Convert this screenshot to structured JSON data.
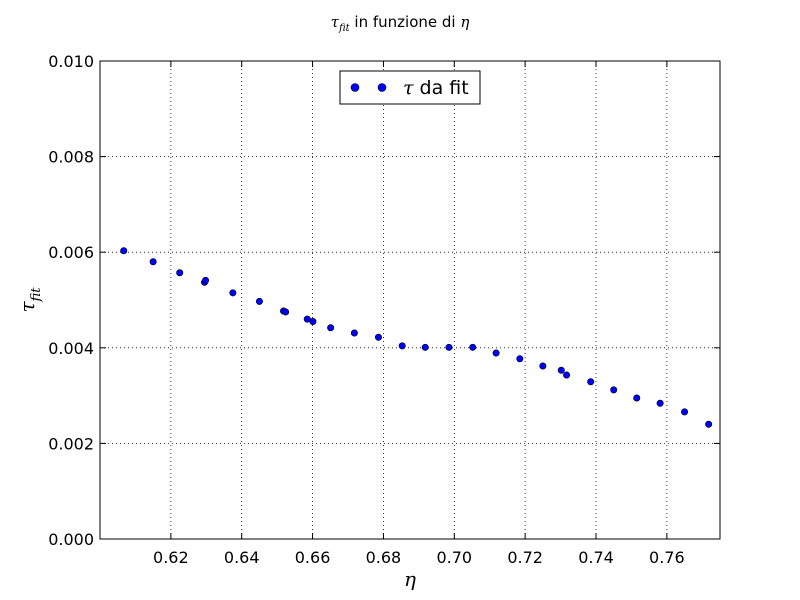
{
  "chart_data": {
    "type": "scatter",
    "title": {
      "symbol": "τ",
      "subscript": "fit",
      "text": " in funzione di ",
      "eta": "η"
    },
    "xlabel": "η",
    "ylabel": {
      "symbol": "τ",
      "subscript": "fit"
    },
    "xlim": [
      0.6,
      0.775
    ],
    "ylim": [
      0.0,
      0.01
    ],
    "xticks": [
      0.62,
      0.64,
      0.66,
      0.68,
      0.7,
      0.72,
      0.74,
      0.76
    ],
    "xtick_labels": [
      "0.62",
      "0.64",
      "0.66",
      "0.68",
      "0.70",
      "0.72",
      "0.74",
      "0.76"
    ],
    "yticks": [
      0.0,
      0.002,
      0.004,
      0.006,
      0.008,
      0.01
    ],
    "ytick_labels": [
      "0.000",
      "0.002",
      "0.004",
      "0.006",
      "0.008",
      "0.010"
    ],
    "grid": true,
    "legend": {
      "placement": "top-center",
      "symbol": "τ",
      "text": " da fit"
    },
    "series": [
      {
        "name": "τ da fit",
        "color": "#0000ff",
        "edge_color": "#000000",
        "points": [
          [
            0.6067,
            0.00603
          ],
          [
            0.615,
            0.0058
          ],
          [
            0.6225,
            0.00557
          ],
          [
            0.6295,
            0.00537
          ],
          [
            0.6298,
            0.00541
          ],
          [
            0.6375,
            0.00515
          ],
          [
            0.645,
            0.00497
          ],
          [
            0.6518,
            0.00477
          ],
          [
            0.6524,
            0.00475
          ],
          [
            0.6585,
            0.0046
          ],
          [
            0.6601,
            0.00455
          ],
          [
            0.6651,
            0.00442
          ],
          [
            0.6718,
            0.00431
          ],
          [
            0.6786,
            0.00422
          ],
          [
            0.6853,
            0.00404
          ],
          [
            0.6918,
            0.00401
          ],
          [
            0.6985,
            0.00401
          ],
          [
            0.7052,
            0.00401
          ],
          [
            0.7118,
            0.00389
          ],
          [
            0.7185,
            0.00377
          ],
          [
            0.725,
            0.00362
          ],
          [
            0.7302,
            0.00353
          ],
          [
            0.7317,
            0.00343
          ],
          [
            0.7385,
            0.00329
          ],
          [
            0.745,
            0.00312
          ],
          [
            0.7515,
            0.00295
          ],
          [
            0.7581,
            0.00284
          ],
          [
            0.765,
            0.00266
          ],
          [
            0.7718,
            0.0024
          ]
        ]
      }
    ]
  }
}
